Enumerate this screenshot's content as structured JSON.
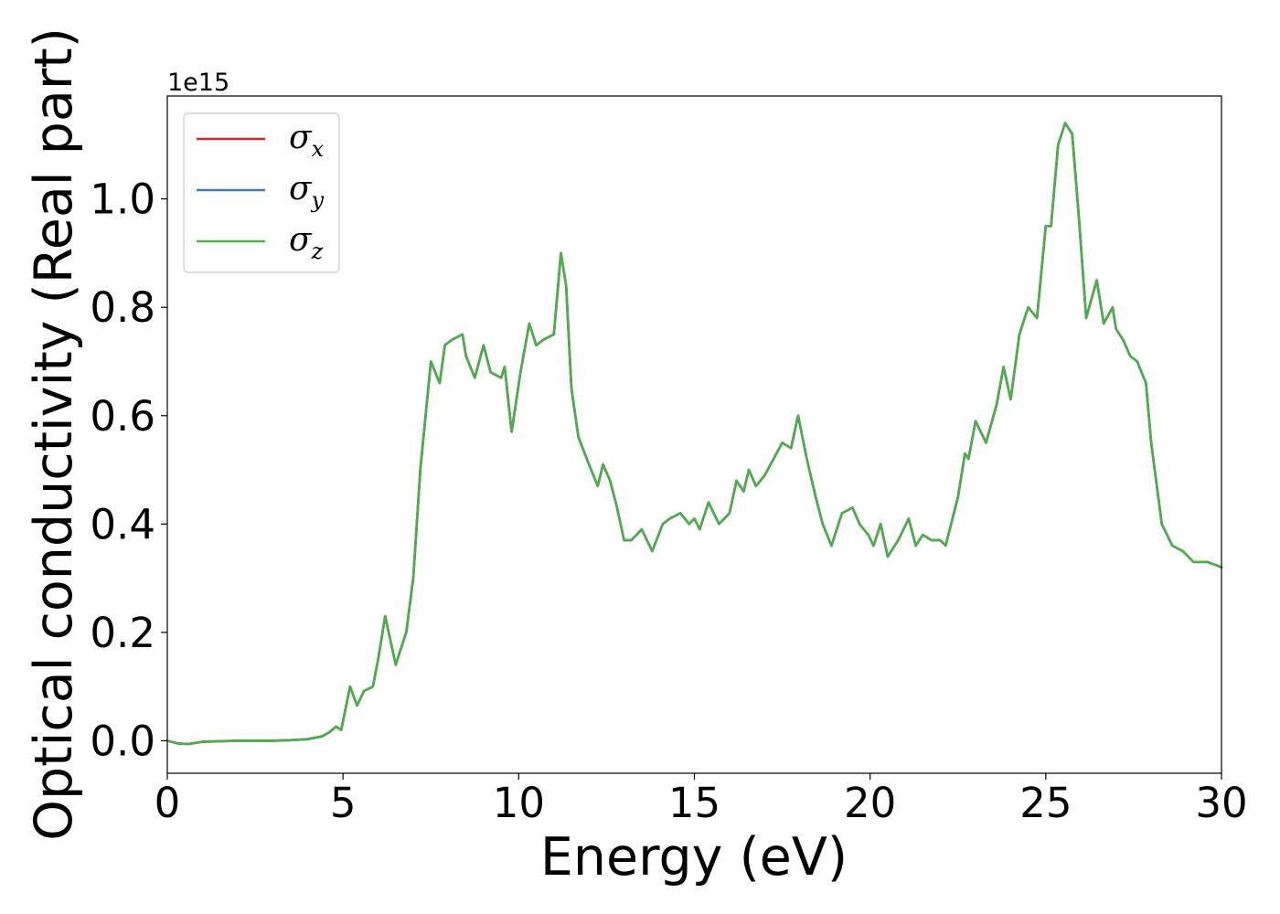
{
  "chart_data": {
    "type": "line",
    "xlabel": "Energy (eV)",
    "ylabel": "Optical conductivity (Real part)",
    "y_offset_text": "1e15",
    "xlim": [
      0,
      30
    ],
    "ylim": [
      -0.06,
      1.19
    ],
    "y_scale_factor": 1000000000000000.0,
    "x_ticks": [
      0,
      5,
      10,
      15,
      20,
      25,
      30
    ],
    "x_tick_labels": [
      "0",
      "5",
      "10",
      "15",
      "20",
      "25",
      "30"
    ],
    "y_ticks": [
      0.0,
      0.2,
      0.4,
      0.6,
      0.8,
      1.0
    ],
    "y_tick_labels": [
      "0.0",
      "0.2",
      "0.4",
      "0.6",
      "0.8",
      "1.0"
    ],
    "grid": false,
    "legend_position": "top-left",
    "legend": [
      {
        "symbol": "σ",
        "subscript": "x",
        "color": "#d62728"
      },
      {
        "symbol": "σ",
        "subscript": "y",
        "color": "#377eb8"
      },
      {
        "symbol": "σ",
        "subscript": "z",
        "color": "#4daf4a"
      }
    ],
    "x": [
      0,
      0.3,
      0.6,
      1.0,
      2.0,
      3.0,
      3.5,
      4.0,
      4.4,
      4.6,
      4.8,
      4.95,
      5.2,
      5.4,
      5.6,
      5.85,
      6.0,
      6.2,
      6.5,
      6.8,
      7.0,
      7.2,
      7.35,
      7.5,
      7.75,
      7.9,
      8.1,
      8.4,
      8.5,
      8.75,
      9.0,
      9.2,
      9.5,
      9.6,
      9.8,
      10.05,
      10.3,
      10.5,
      10.7,
      11.0,
      11.2,
      11.35,
      11.5,
      11.7,
      12.0,
      12.25,
      12.4,
      12.6,
      12.8,
      13.0,
      13.2,
      13.5,
      13.8,
      14.1,
      14.3,
      14.6,
      14.85,
      15.0,
      15.15,
      15.4,
      15.7,
      16.0,
      16.2,
      16.4,
      16.55,
      16.75,
      17.0,
      17.25,
      17.5,
      17.75,
      17.95,
      18.2,
      18.45,
      18.65,
      18.9,
      19.2,
      19.5,
      19.7,
      19.95,
      20.1,
      20.3,
      20.5,
      20.8,
      21.1,
      21.3,
      21.5,
      21.75,
      22.0,
      22.15,
      22.5,
      22.7,
      22.8,
      23.0,
      23.3,
      23.6,
      23.8,
      24.0,
      24.25,
      24.5,
      24.75,
      25.0,
      25.15,
      25.35,
      25.55,
      25.75,
      25.95,
      26.15,
      26.45,
      26.65,
      26.9,
      27.0,
      27.2,
      27.4,
      27.6,
      27.85,
      28.0,
      28.3,
      28.6,
      28.9,
      29.2,
      29.6,
      30.0
    ],
    "series": [
      {
        "name": "σx",
        "color": "#d62728",
        "values": [
          0.0,
          -0.005,
          -0.006,
          -0.002,
          0.0,
          0.0,
          0.001,
          0.003,
          0.008,
          0.015,
          0.026,
          0.02,
          0.1,
          0.065,
          0.092,
          0.1,
          0.15,
          0.23,
          0.14,
          0.2,
          0.3,
          0.5,
          0.6,
          0.7,
          0.66,
          0.73,
          0.74,
          0.75,
          0.71,
          0.67,
          0.73,
          0.68,
          0.67,
          0.69,
          0.57,
          0.68,
          0.77,
          0.73,
          0.74,
          0.75,
          0.9,
          0.84,
          0.65,
          0.56,
          0.51,
          0.47,
          0.51,
          0.48,
          0.43,
          0.37,
          0.37,
          0.39,
          0.35,
          0.4,
          0.41,
          0.42,
          0.4,
          0.41,
          0.39,
          0.44,
          0.4,
          0.42,
          0.48,
          0.46,
          0.5,
          0.47,
          0.49,
          0.52,
          0.55,
          0.54,
          0.6,
          0.52,
          0.45,
          0.4,
          0.36,
          0.42,
          0.43,
          0.4,
          0.38,
          0.36,
          0.4,
          0.34,
          0.37,
          0.41,
          0.36,
          0.38,
          0.37,
          0.37,
          0.36,
          0.45,
          0.53,
          0.52,
          0.59,
          0.55,
          0.62,
          0.69,
          0.63,
          0.75,
          0.8,
          0.78,
          0.95,
          0.95,
          1.1,
          1.14,
          1.12,
          0.96,
          0.78,
          0.85,
          0.77,
          0.8,
          0.76,
          0.74,
          0.71,
          0.7,
          0.66,
          0.55,
          0.4,
          0.36,
          0.35,
          0.33,
          0.33,
          0.32
        ]
      },
      {
        "name": "σy",
        "color": "#377eb8",
        "values": [
          0.0,
          -0.005,
          -0.006,
          -0.002,
          0.0,
          0.0,
          0.001,
          0.003,
          0.008,
          0.015,
          0.026,
          0.02,
          0.1,
          0.065,
          0.092,
          0.1,
          0.15,
          0.23,
          0.14,
          0.2,
          0.3,
          0.5,
          0.6,
          0.7,
          0.66,
          0.73,
          0.74,
          0.75,
          0.71,
          0.67,
          0.73,
          0.68,
          0.67,
          0.69,
          0.57,
          0.68,
          0.77,
          0.73,
          0.74,
          0.75,
          0.9,
          0.84,
          0.65,
          0.56,
          0.51,
          0.47,
          0.51,
          0.48,
          0.43,
          0.37,
          0.37,
          0.39,
          0.35,
          0.4,
          0.41,
          0.42,
          0.4,
          0.41,
          0.39,
          0.44,
          0.4,
          0.42,
          0.48,
          0.46,
          0.5,
          0.47,
          0.49,
          0.52,
          0.55,
          0.54,
          0.6,
          0.52,
          0.45,
          0.4,
          0.36,
          0.42,
          0.43,
          0.4,
          0.38,
          0.36,
          0.4,
          0.34,
          0.37,
          0.41,
          0.36,
          0.38,
          0.37,
          0.37,
          0.36,
          0.45,
          0.53,
          0.52,
          0.59,
          0.55,
          0.62,
          0.69,
          0.63,
          0.75,
          0.8,
          0.78,
          0.95,
          0.95,
          1.1,
          1.14,
          1.12,
          0.96,
          0.78,
          0.85,
          0.77,
          0.8,
          0.76,
          0.74,
          0.71,
          0.7,
          0.66,
          0.55,
          0.4,
          0.36,
          0.35,
          0.33,
          0.33,
          0.32
        ]
      },
      {
        "name": "σz",
        "color": "#4daf4a",
        "values": [
          0.0,
          -0.005,
          -0.006,
          -0.002,
          0.0,
          0.0,
          0.001,
          0.003,
          0.008,
          0.015,
          0.026,
          0.02,
          0.1,
          0.065,
          0.092,
          0.1,
          0.15,
          0.23,
          0.14,
          0.2,
          0.3,
          0.5,
          0.6,
          0.7,
          0.66,
          0.73,
          0.74,
          0.75,
          0.71,
          0.67,
          0.73,
          0.68,
          0.67,
          0.69,
          0.57,
          0.68,
          0.77,
          0.73,
          0.74,
          0.75,
          0.9,
          0.84,
          0.65,
          0.56,
          0.51,
          0.47,
          0.51,
          0.48,
          0.43,
          0.37,
          0.37,
          0.39,
          0.35,
          0.4,
          0.41,
          0.42,
          0.4,
          0.41,
          0.39,
          0.44,
          0.4,
          0.42,
          0.48,
          0.46,
          0.5,
          0.47,
          0.49,
          0.52,
          0.55,
          0.54,
          0.6,
          0.52,
          0.45,
          0.4,
          0.36,
          0.42,
          0.43,
          0.4,
          0.38,
          0.36,
          0.4,
          0.34,
          0.37,
          0.41,
          0.36,
          0.38,
          0.37,
          0.37,
          0.36,
          0.45,
          0.53,
          0.52,
          0.59,
          0.55,
          0.62,
          0.69,
          0.63,
          0.75,
          0.8,
          0.78,
          0.95,
          0.95,
          1.1,
          1.14,
          1.12,
          0.96,
          0.78,
          0.85,
          0.77,
          0.8,
          0.76,
          0.74,
          0.71,
          0.7,
          0.66,
          0.55,
          0.4,
          0.36,
          0.35,
          0.33,
          0.33,
          0.32
        ]
      }
    ]
  }
}
